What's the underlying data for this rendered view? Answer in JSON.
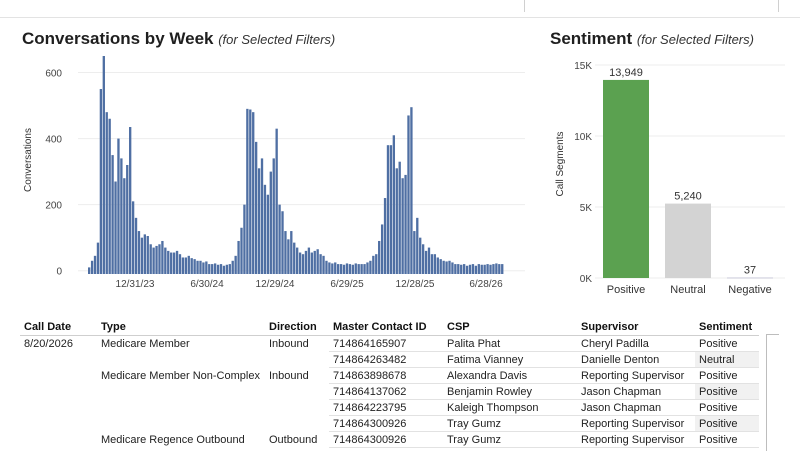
{
  "weekly_chart": {
    "title": "Conversations by Week",
    "subtitle": "(for Selected Filters)",
    "ylabel": "Conversations",
    "yticks": [
      "0",
      "200",
      "400",
      "600"
    ],
    "xticks": [
      "12/31/23",
      "6/30/24",
      "12/29/24",
      "6/29/25",
      "12/28/25",
      "6/28/26"
    ]
  },
  "sentiment_chart": {
    "title": "Sentiment",
    "subtitle": "(for Selected Filters)",
    "ylabel": "Call Segments",
    "yticks": [
      "0K",
      "5K",
      "10K",
      "15K"
    ]
  },
  "colors": {
    "bar_blue": "#4f6fa3",
    "positive": "#5ba150",
    "neutral": "#d3d3d3",
    "negative": "#c9c9d9"
  },
  "chart_data": [
    {
      "type": "bar",
      "title": "Conversations by Week",
      "ylabel": "Conversations",
      "ylim": [
        -10,
        650
      ],
      "x_tick_labels": [
        "12/31/23",
        "6/30/24",
        "12/29/24",
        "6/29/25",
        "12/28/25",
        "6/28/26"
      ],
      "values": [
        10,
        30,
        45,
        85,
        550,
        650,
        480,
        460,
        350,
        270,
        400,
        340,
        280,
        320,
        435,
        210,
        160,
        120,
        100,
        110,
        105,
        80,
        70,
        75,
        80,
        90,
        70,
        60,
        55,
        55,
        60,
        50,
        40,
        40,
        45,
        38,
        35,
        30,
        30,
        25,
        28,
        20,
        20,
        22,
        18,
        20,
        15,
        18,
        20,
        30,
        45,
        90,
        130,
        200,
        490,
        488,
        480,
        390,
        310,
        340,
        260,
        230,
        300,
        340,
        430,
        200,
        180,
        120,
        95,
        120,
        85,
        70,
        55,
        50,
        60,
        70,
        55,
        60,
        65,
        50,
        45,
        30,
        25,
        22,
        25,
        20,
        20,
        18,
        22,
        20,
        18,
        22,
        20,
        20,
        20,
        25,
        30,
        45,
        50,
        90,
        140,
        220,
        380,
        380,
        410,
        310,
        330,
        280,
        290,
        470,
        495,
        120,
        160,
        100,
        80,
        60,
        70,
        50,
        50,
        40,
        35,
        30,
        28,
        30,
        25,
        20,
        20,
        18,
        20,
        15,
        18,
        20,
        15,
        20,
        18,
        18,
        20,
        18,
        20,
        22,
        20,
        20
      ]
    },
    {
      "type": "bar",
      "title": "Sentiment",
      "ylabel": "Call Segments",
      "ylim": [
        0,
        15000
      ],
      "categories": [
        "Positive",
        "Neutral",
        "Negative"
      ],
      "values": [
        13949,
        5240,
        37
      ],
      "data_labels": [
        "13,949",
        "5,240",
        "37"
      ]
    }
  ],
  "table": {
    "headers": [
      "Call Date",
      "Type",
      "Direction",
      "Master Contact ID",
      "CSP",
      "Supervisor",
      "Sentiment"
    ],
    "rows": [
      {
        "date": "8/20/2026",
        "type": "Medicare Member",
        "direction": "Inbound",
        "contact_id": "714864165907",
        "csp": "Palita Phat",
        "supervisor": "Cheryl Padilla",
        "sentiment": "Positive"
      },
      {
        "date": "",
        "type": "",
        "direction": "",
        "contact_id": "714864263482",
        "csp": "Fatima Vianney",
        "supervisor": "Danielle Denton",
        "sentiment": "Neutral"
      },
      {
        "date": "",
        "type": "Medicare Member Non-Complex",
        "direction": "Inbound",
        "contact_id": "714863898678",
        "csp": "Alexandra Davis",
        "supervisor": "Reporting Supervisor",
        "sentiment": "Positive"
      },
      {
        "date": "",
        "type": "",
        "direction": "",
        "contact_id": "714864137062",
        "csp": "Benjamin Rowley",
        "supervisor": "Jason Chapman",
        "sentiment": "Positive"
      },
      {
        "date": "",
        "type": "",
        "direction": "",
        "contact_id": "714864223795",
        "csp": "Kaleigh Thompson",
        "supervisor": "Jason Chapman",
        "sentiment": "Positive"
      },
      {
        "date": "",
        "type": "",
        "direction": "",
        "contact_id": "714864300926",
        "csp": "Tray Gumz",
        "supervisor": "Reporting Supervisor",
        "sentiment": "Positive"
      },
      {
        "date": "",
        "type": "Medicare Regence Outbound",
        "direction": "Outbound",
        "contact_id": "714864300926",
        "csp": "Tray Gumz",
        "supervisor": "Reporting Supervisor",
        "sentiment": "Positive"
      }
    ]
  }
}
